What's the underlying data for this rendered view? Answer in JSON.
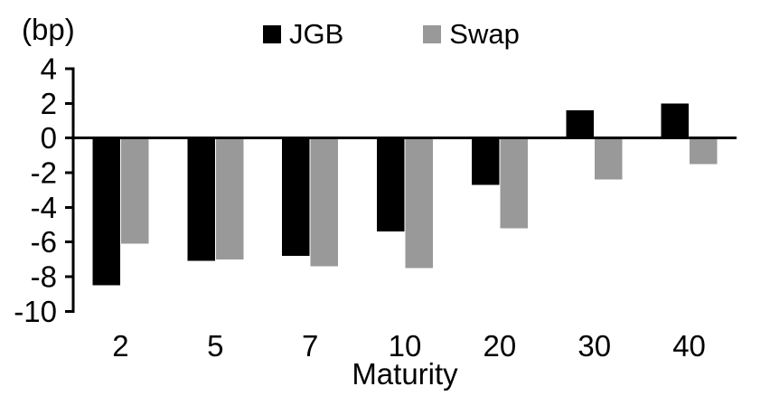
{
  "chart_data": {
    "type": "bar",
    "title": "",
    "unit_label": "(bp)",
    "xlabel": "Maturity",
    "ylabel": "",
    "categories": [
      "2",
      "5",
      "7",
      "10",
      "20",
      "30",
      "40"
    ],
    "series": [
      {
        "name": "JGB",
        "color": "#000000",
        "values": [
          -8.5,
          -7.1,
          -6.8,
          -5.4,
          -2.7,
          1.6,
          2.0
        ]
      },
      {
        "name": "Swap",
        "color": "#999999",
        "values": [
          -6.1,
          -7.0,
          -7.4,
          -7.5,
          -5.2,
          -2.4,
          -1.5
        ]
      }
    ],
    "ylim": [
      -10,
      4
    ],
    "yticks": [
      4,
      2,
      0,
      -2,
      -4,
      -6,
      -8,
      -10
    ],
    "grid": false,
    "legend_position": "top-center",
    "axis_color": "#000000"
  }
}
